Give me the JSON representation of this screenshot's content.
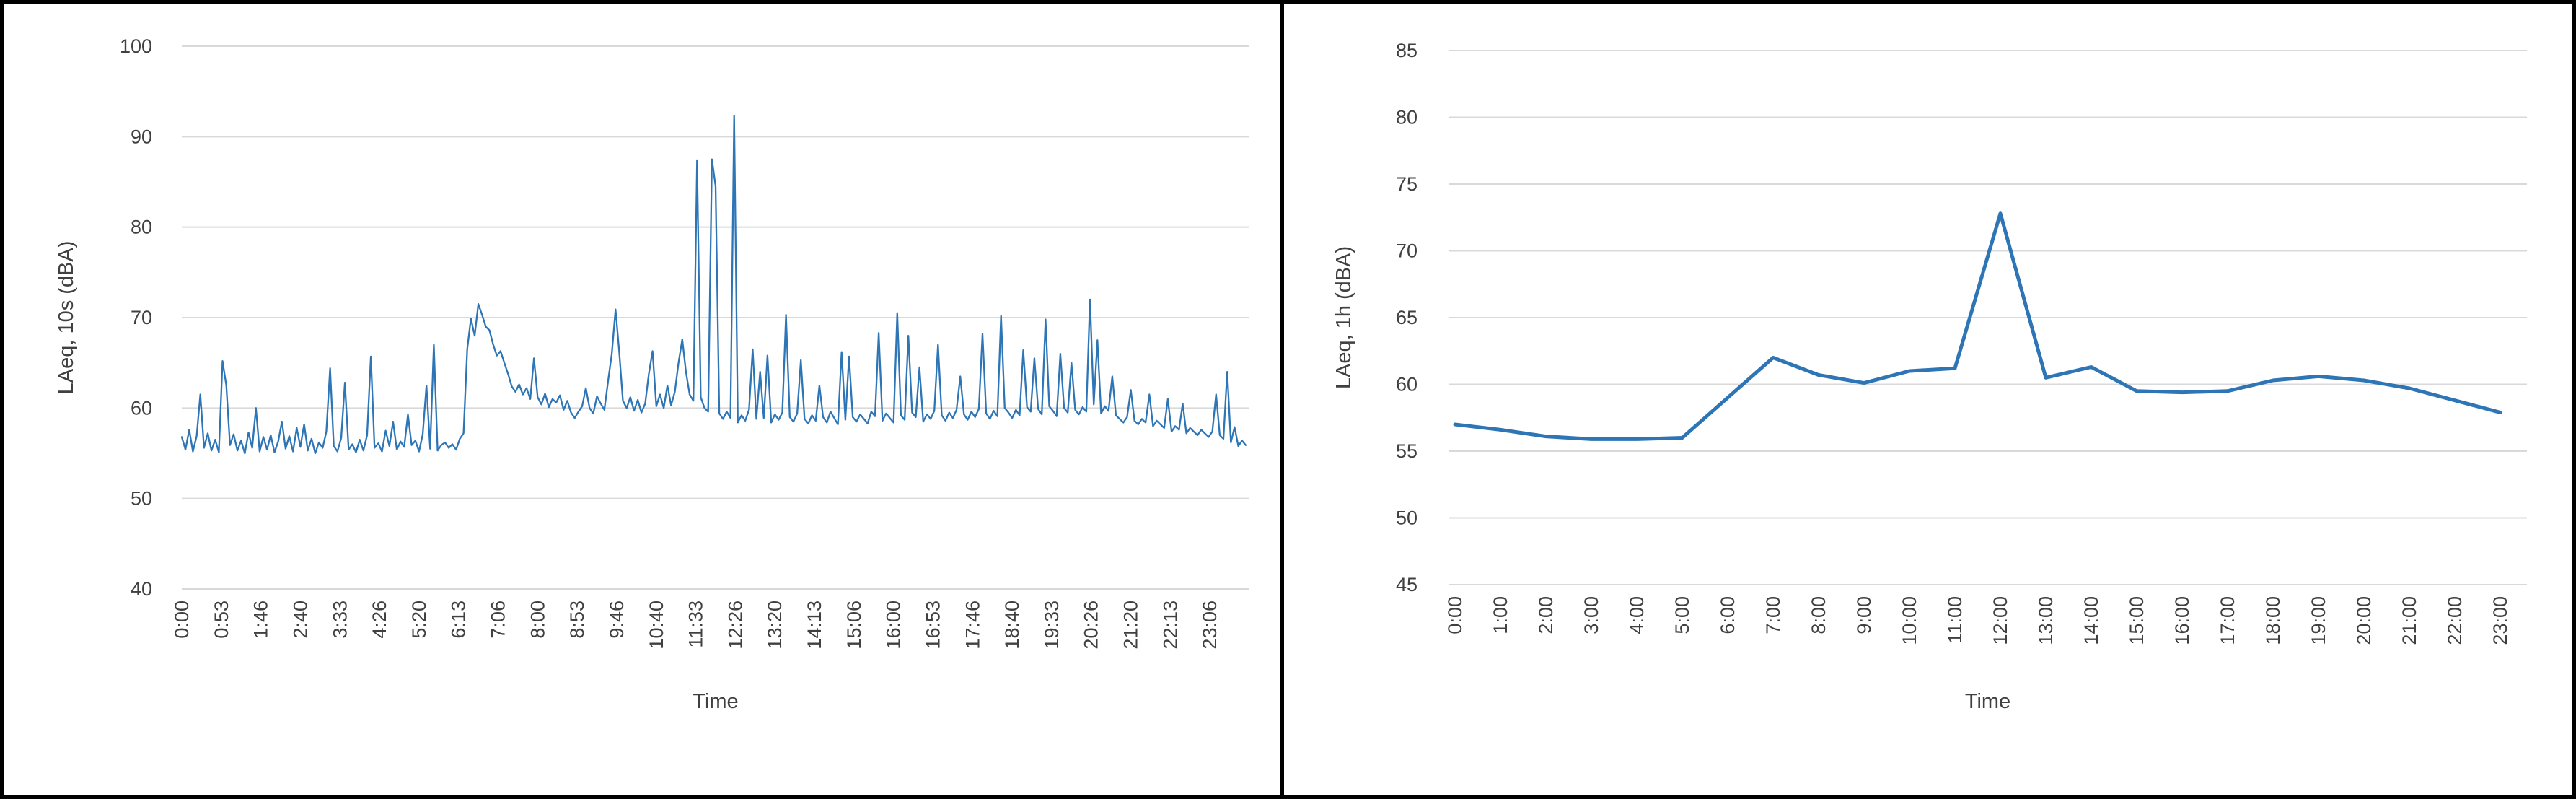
{
  "figure": {
    "background": "#ffffff",
    "frame_color": "#000000",
    "text_color": "#404040"
  },
  "chart_data": [
    {
      "id": "left",
      "type": "line",
      "title": "",
      "xlabel": "Time",
      "ylabel": "LAeq, 10s (dBA)",
      "ylim": [
        40,
        100
      ],
      "yticks": [
        40,
        50,
        60,
        70,
        80,
        90,
        100
      ],
      "grid": true,
      "legend": "none",
      "grid_color": "#d9d9d9",
      "line_color": "#2e75b6",
      "xtick_labels": [
        "0:00",
        "0:53",
        "1:46",
        "2:40",
        "3:33",
        "4:26",
        "5:20",
        "6:13",
        "7:06",
        "8:00",
        "8:53",
        "9:46",
        "10:40",
        "11:33",
        "12:26",
        "13:20",
        "14:13",
        "15:06",
        "16:00",
        "16:53",
        "17:46",
        "18:40",
        "19:33",
        "20:26",
        "21:20",
        "22:13",
        "23:06"
      ],
      "xtick_interval_minutes": 53.333,
      "point_interval_minutes": 5,
      "values": [
        56.8,
        55.4,
        57.6,
        55.2,
        56.9,
        61.5,
        55.6,
        57.2,
        55.3,
        56.5,
        55.1,
        65.2,
        62.5,
        55.9,
        57.1,
        55.3,
        56.4,
        55.0,
        57.3,
        55.6,
        60.0,
        55.2,
        56.8,
        55.4,
        57.0,
        55.1,
        56.3,
        58.5,
        55.5,
        56.9,
        55.2,
        57.8,
        55.7,
        58.2,
        55.3,
        56.6,
        55.0,
        56.2,
        55.6,
        57.4,
        64.4,
        55.8,
        55.2,
        56.7,
        62.8,
        55.4,
        56.0,
        55.1,
        56.5,
        55.3,
        57.0,
        65.7,
        55.6,
        56.1,
        55.2,
        57.5,
        55.8,
        58.5,
        55.4,
        56.3,
        55.7,
        59.3,
        55.9,
        56.4,
        55.2,
        57.1,
        62.5,
        55.5,
        67.0,
        55.3,
        55.9,
        56.2,
        55.6,
        56.0,
        55.4,
        56.6,
        57.2,
        66.5,
        69.9,
        68.0,
        71.5,
        70.3,
        69.0,
        68.6,
        67.0,
        65.8,
        66.3,
        65.0,
        63.8,
        62.4,
        61.8,
        62.6,
        61.5,
        62.2,
        61.0,
        65.5,
        61.2,
        60.4,
        61.6,
        60.1,
        61.0,
        60.6,
        61.4,
        59.8,
        60.8,
        59.5,
        58.9,
        59.6,
        60.2,
        62.2,
        60.0,
        59.4,
        61.3,
        60.5,
        59.8,
        63.0,
        66.0,
        70.9,
        66.2,
        60.8,
        60.0,
        61.2,
        59.7,
        60.9,
        59.5,
        60.5,
        63.8,
        66.3,
        60.2,
        61.5,
        60.0,
        62.5,
        60.3,
        61.8,
        65.0,
        67.6,
        64.0,
        61.5,
        60.8,
        87.4,
        61.2,
        60.0,
        59.6,
        87.5,
        84.5,
        59.4,
        58.8,
        59.6,
        58.9,
        92.3,
        58.4,
        59.2,
        58.6,
        59.8,
        66.5,
        58.8,
        64.0,
        58.9,
        65.8,
        58.4,
        59.3,
        58.7,
        59.5,
        70.3,
        59.0,
        58.5,
        59.4,
        65.3,
        58.8,
        58.3,
        59.2,
        58.6,
        62.5,
        59.0,
        58.4,
        59.6,
        58.9,
        58.2,
        66.2,
        58.7,
        65.7,
        59.0,
        58.5,
        59.3,
        58.8,
        58.3,
        59.6,
        59.1,
        68.3,
        58.6,
        59.4,
        58.9,
        58.4,
        70.5,
        59.2,
        58.7,
        68.0,
        59.5,
        59.0,
        64.5,
        58.5,
        59.3,
        58.8,
        59.7,
        67.0,
        59.2,
        58.6,
        59.5,
        58.9,
        59.8,
        63.5,
        59.3,
        58.7,
        59.6,
        59.0,
        59.9,
        68.2,
        59.4,
        58.8,
        59.7,
        59.1,
        70.2,
        60.0,
        59.5,
        58.9,
        59.8,
        59.2,
        66.4,
        60.1,
        59.6,
        65.5,
        59.9,
        59.3,
        69.8,
        60.2,
        59.7,
        59.1,
        66.0,
        60.0,
        59.5,
        65.0,
        59.8,
        59.3,
        60.1,
        59.6,
        72.0,
        60.4,
        67.5,
        59.4,
        60.2,
        59.7,
        63.5,
        59.2,
        58.8,
        58.4,
        59.0,
        62.0,
        58.6,
        58.2,
        58.8,
        58.4,
        61.5,
        58.0,
        58.6,
        58.2,
        57.8,
        61.0,
        57.4,
        58.0,
        57.6,
        60.5,
        57.2,
        57.8,
        57.4,
        57.0,
        57.6,
        57.2,
        56.8,
        57.4,
        61.5,
        57.0,
        56.6,
        64.0,
        56.2,
        57.9,
        55.8,
        56.4,
        55.9
      ]
    },
    {
      "id": "right",
      "type": "line",
      "title": "",
      "xlabel": "Time",
      "ylabel": "LAeq, 1h (dBA)",
      "ylim": [
        45,
        85
      ],
      "yticks": [
        45,
        50,
        55,
        60,
        65,
        70,
        75,
        80,
        85
      ],
      "grid": true,
      "legend": "none",
      "grid_color": "#d9d9d9",
      "line_color": "#2e75b6",
      "xtick_labels": [
        "0:00",
        "1:00",
        "2:00",
        "3:00",
        "4:00",
        "5:00",
        "6:00",
        "7:00",
        "8:00",
        "9:00",
        "10:00",
        "11:00",
        "12:00",
        "13:00",
        "14:00",
        "15:00",
        "16:00",
        "17:00",
        "18:00",
        "19:00",
        "20:00",
        "21:00",
        "22:00",
        "23:00"
      ],
      "xtick_interval_minutes": 60,
      "point_interval_minutes": 60,
      "values": [
        57.0,
        56.6,
        56.1,
        55.9,
        55.9,
        56.0,
        59.0,
        62.0,
        60.7,
        60.1,
        61.0,
        61.2,
        72.8,
        60.5,
        61.3,
        59.5,
        59.4,
        59.5,
        60.3,
        60.6,
        60.3,
        59.7,
        58.8,
        57.9
      ]
    }
  ]
}
